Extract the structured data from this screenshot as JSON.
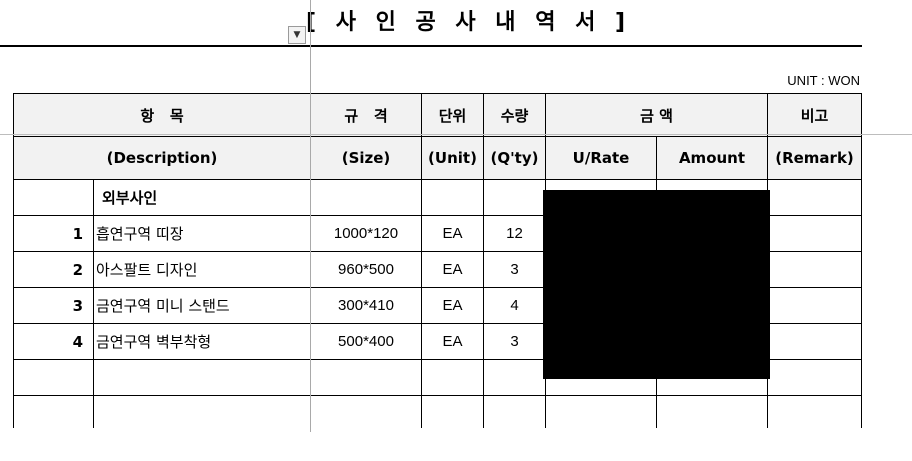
{
  "document": {
    "title": "[ 사 인 공 사 내 역 서 ]",
    "unit_note": "UNIT : WON",
    "dropdown_glyph": "▼"
  },
  "header": {
    "row1": {
      "item": "항   목",
      "size": "규   격",
      "unit": "단위",
      "qty": "수량",
      "amount": "금 액",
      "remark": "비고"
    },
    "row2": {
      "description": "(Description)",
      "size": "(Size)",
      "unit": "(Unit)",
      "qty": "(Q'ty)",
      "urate": "U/Rate",
      "amount": "Amount",
      "remark": "(Remark)"
    }
  },
  "section": {
    "label": "외부사인"
  },
  "rows": [
    {
      "no": "1",
      "desc": "흡연구역 띠장",
      "size": "1000*120",
      "unit": "EA",
      "qty": "12"
    },
    {
      "no": "2",
      "desc": "아스팔트 디자인",
      "size": "960*500",
      "unit": "EA",
      "qty": "3"
    },
    {
      "no": "3",
      "desc": "금연구역 미니 스탠드",
      "size": "300*410",
      "unit": "EA",
      "qty": "4"
    },
    {
      "no": "4",
      "desc": "금연구역 벽부착형",
      "size": "500*400",
      "unit": "EA",
      "qty": "3"
    }
  ]
}
